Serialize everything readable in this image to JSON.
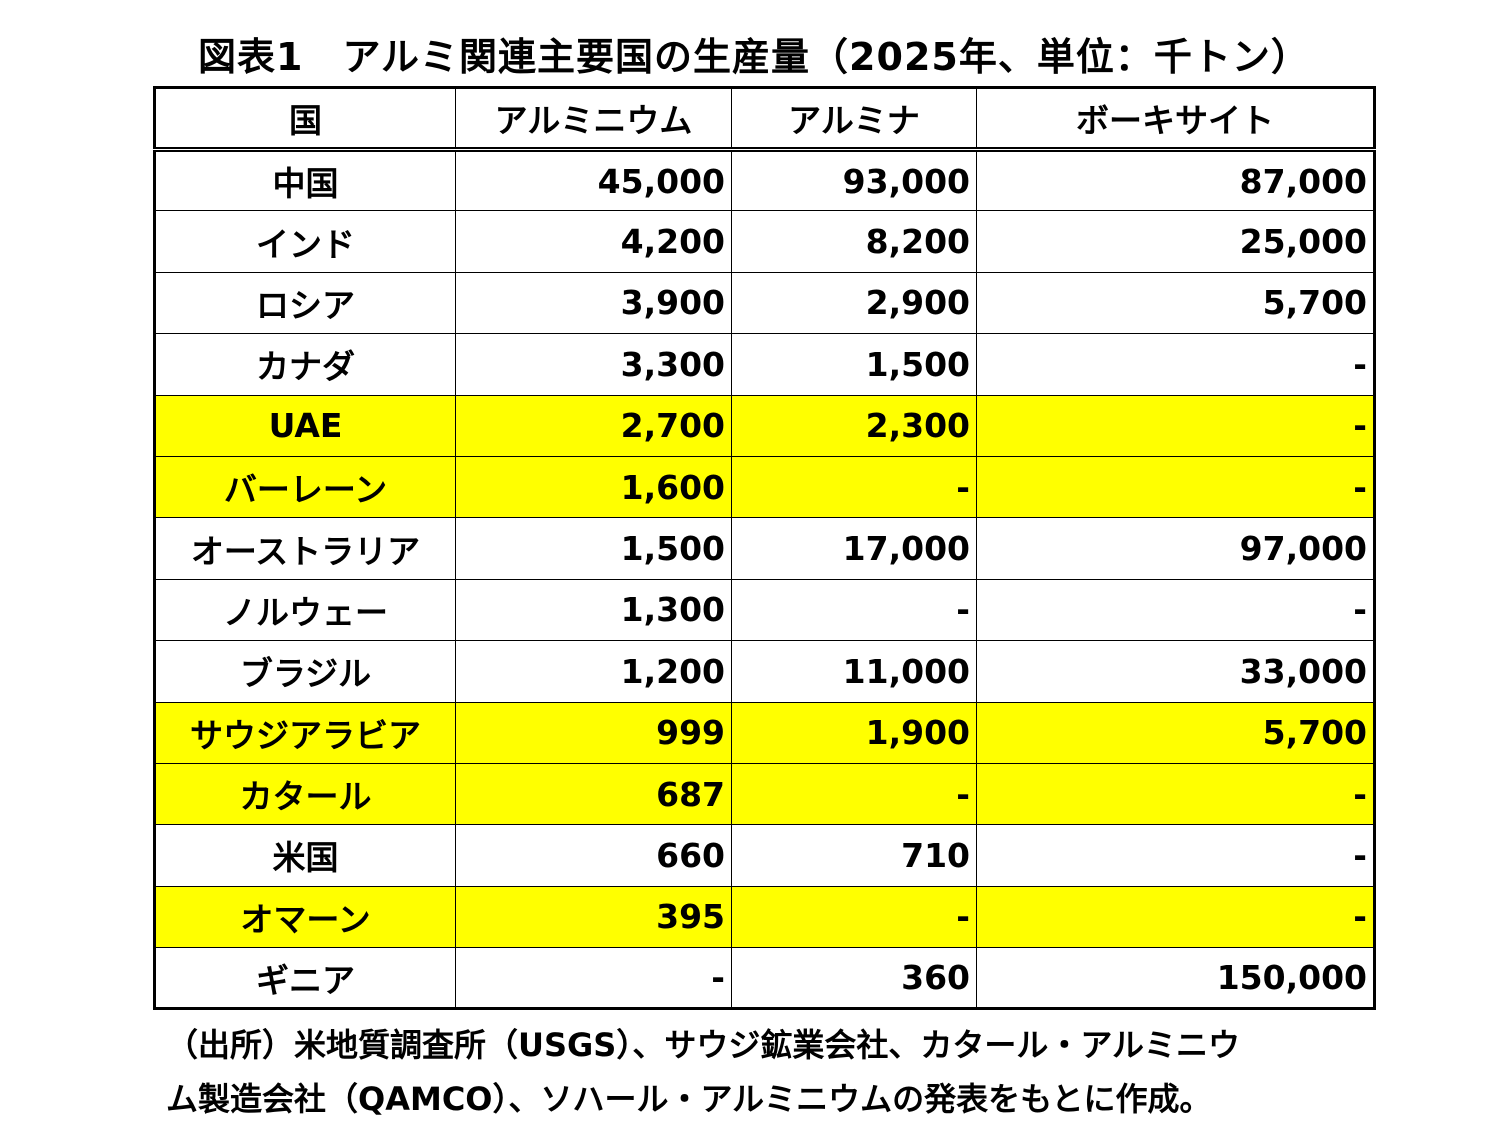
{
  "title": "図表1　アルミ関連主要国の生産量（2025年、単位：千トン）",
  "highlight_color": "#ffff00",
  "headers": [
    "国",
    "アルミニウム",
    "アルミナ",
    "ボーキサイト"
  ],
  "rows": [
    {
      "country": "中国",
      "aluminium": "45,000",
      "alumina": "93,000",
      "bauxite": "87,000",
      "highlight": false
    },
    {
      "country": "インド",
      "aluminium": "4,200",
      "alumina": "8,200",
      "bauxite": "25,000",
      "highlight": false
    },
    {
      "country": "ロシア",
      "aluminium": "3,900",
      "alumina": "2,900",
      "bauxite": "5,700",
      "highlight": false
    },
    {
      "country": "カナダ",
      "aluminium": "3,300",
      "alumina": "1,500",
      "bauxite": "-",
      "highlight": false
    },
    {
      "country": "UAE",
      "aluminium": "2,700",
      "alumina": "2,300",
      "bauxite": "-",
      "highlight": true
    },
    {
      "country": "バーレーン",
      "aluminium": "1,600",
      "alumina": "-",
      "bauxite": "-",
      "highlight": true
    },
    {
      "country": "オーストラリア",
      "aluminium": "1,500",
      "alumina": "17,000",
      "bauxite": "97,000",
      "highlight": false
    },
    {
      "country": "ノルウェー",
      "aluminium": "1,300",
      "alumina": "-",
      "bauxite": "-",
      "highlight": false
    },
    {
      "country": "ブラジル",
      "aluminium": "1,200",
      "alumina": "11,000",
      "bauxite": "33,000",
      "highlight": false
    },
    {
      "country": "サウジアラビア",
      "aluminium": "999",
      "alumina": "1,900",
      "bauxite": "5,700",
      "highlight": true
    },
    {
      "country": "カタール",
      "aluminium": "687",
      "alumina": "-",
      "bauxite": "-",
      "highlight": true
    },
    {
      "country": "米国",
      "aluminium": "660",
      "alumina": "710",
      "bauxite": "-",
      "highlight": false
    },
    {
      "country": "オマーン",
      "aluminium": "395",
      "alumina": "-",
      "bauxite": "-",
      "highlight": true
    },
    {
      "country": "ギニア",
      "aluminium": "-",
      "alumina": "360",
      "bauxite": "150,000",
      "highlight": false
    }
  ],
  "source_lines": [
    "（出所）米地質調査所（USGS）、サウジ鉱業会社、カタール・アルミニウ",
    "ム製造会社（QAMCO）、ソハール・アルミニウムの発表をもとに作成。"
  ]
}
